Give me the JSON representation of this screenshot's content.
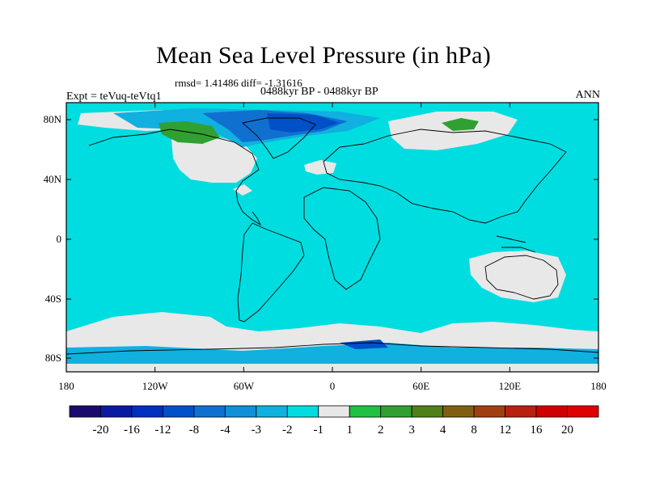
{
  "title": "Mean Sea Level Pressure (in hPa)",
  "stats": "rmsd= 1.41486 diff= -1.31616",
  "period": "0488kyr BP - 0488kyr BP",
  "experiment": "Expt = teVuq-teVtq1",
  "season": "ANN",
  "map": {
    "lat_ticks": [
      "80N",
      "40N",
      "0",
      "40S",
      "80S"
    ],
    "lon_ticks": [
      "180",
      "120W",
      "60W",
      "0",
      "60E",
      "120E",
      "180"
    ],
    "background_color": "#00dde0"
  },
  "colorbar": {
    "labels": [
      "-20",
      "-16",
      "-12",
      "-8",
      "-4",
      "-3",
      "-2",
      "-1",
      "1",
      "2",
      "3",
      "4",
      "8",
      "12",
      "16",
      "20"
    ],
    "colors": [
      "#1a0a6e",
      "#0a1aa0",
      "#0030c0",
      "#0050c8",
      "#1070d0",
      "#1090d8",
      "#10b0e0",
      "#00dde0",
      "#e8e8e8",
      "#20c040",
      "#30a030",
      "#508018",
      "#806010",
      "#a04010",
      "#b82010",
      "#d00000",
      "#e00000"
    ]
  }
}
